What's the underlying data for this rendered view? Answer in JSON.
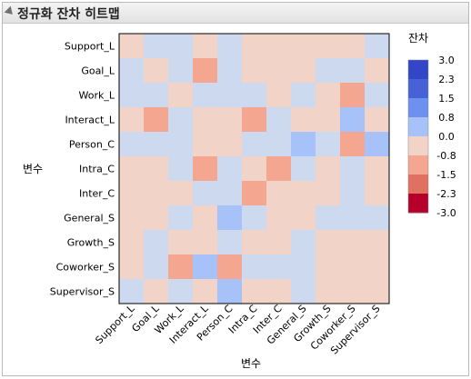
{
  "panel": {
    "title": "정규화 잔차 히트맵"
  },
  "colors": {
    "-3.0": "#b4002a",
    "-2.3": "#e07060",
    "-1.5": "#f4a690",
    "-0.8": "#f2d3c8",
    "0.0": "#cdd9ee",
    "0.8": "#a7c1f9",
    "1.5": "#6c91ee",
    "2.3": "#4762d6",
    "3.0": "#3346c8"
  },
  "chart_data": {
    "type": "heatmap",
    "xlabel": "변수",
    "ylabel": "변수",
    "x_categories": [
      "Support_L",
      "Goal_L",
      "Work_L",
      "Interact_L",
      "Person_C",
      "Intra_C",
      "Inter_C",
      "General_S",
      "Growth_S",
      "Coworker_S",
      "Supervisor_S"
    ],
    "y_categories": [
      "Support_L",
      "Goal_L",
      "Work_L",
      "Interact_L",
      "Person_C",
      "Intra_C",
      "Inter_C",
      "General_S",
      "Growth_S",
      "Coworker_S",
      "Supervisor_S"
    ],
    "values": [
      [
        -0.8,
        0.0,
        0.0,
        -0.8,
        0.0,
        -0.8,
        -0.8,
        -0.8,
        -0.8,
        -0.8,
        0.0
      ],
      [
        0.0,
        -0.8,
        0.0,
        -1.5,
        0.0,
        -0.8,
        -0.8,
        -0.8,
        0.0,
        0.0,
        -0.8
      ],
      [
        0.0,
        0.0,
        -0.8,
        0.0,
        0.0,
        0.0,
        -0.8,
        0.0,
        -0.8,
        -1.5,
        0.0
      ],
      [
        -0.8,
        -1.5,
        0.0,
        -0.8,
        -0.8,
        -1.5,
        0.0,
        -0.8,
        -0.8,
        0.8,
        -0.8
      ],
      [
        0.0,
        0.0,
        0.0,
        -0.8,
        -0.8,
        0.0,
        0.0,
        0.8,
        0.0,
        -1.5,
        0.8
      ],
      [
        -0.8,
        -0.8,
        0.0,
        -1.5,
        0.0,
        -0.8,
        -1.5,
        0.0,
        -0.8,
        0.0,
        -0.8
      ],
      [
        -0.8,
        -0.8,
        -0.8,
        0.0,
        0.0,
        -1.5,
        -0.8,
        -0.8,
        -0.8,
        0.0,
        -0.8
      ],
      [
        -0.8,
        -0.8,
        0.0,
        -0.8,
        0.8,
        0.0,
        -0.8,
        -0.8,
        0.0,
        0.0,
        0.0
      ],
      [
        -0.8,
        0.0,
        -0.8,
        -0.8,
        0.0,
        -0.8,
        -0.8,
        0.0,
        -0.8,
        -0.8,
        -0.8
      ],
      [
        -0.8,
        0.0,
        -1.5,
        0.8,
        -1.5,
        0.0,
        0.0,
        0.0,
        -0.8,
        -0.8,
        -0.8
      ],
      [
        0.0,
        -0.8,
        0.0,
        -0.8,
        0.8,
        -0.8,
        -0.8,
        0.0,
        -0.8,
        -0.8,
        -0.8
      ]
    ],
    "legend": {
      "title": "잔차",
      "ticks": [
        "3.0",
        "2.3",
        "1.5",
        "0.8",
        "0.0",
        "-0.8",
        "-1.5",
        "-2.3",
        "-3.0"
      ],
      "placement": "right"
    },
    "zlim": [
      -3.0,
      3.0
    ]
  }
}
